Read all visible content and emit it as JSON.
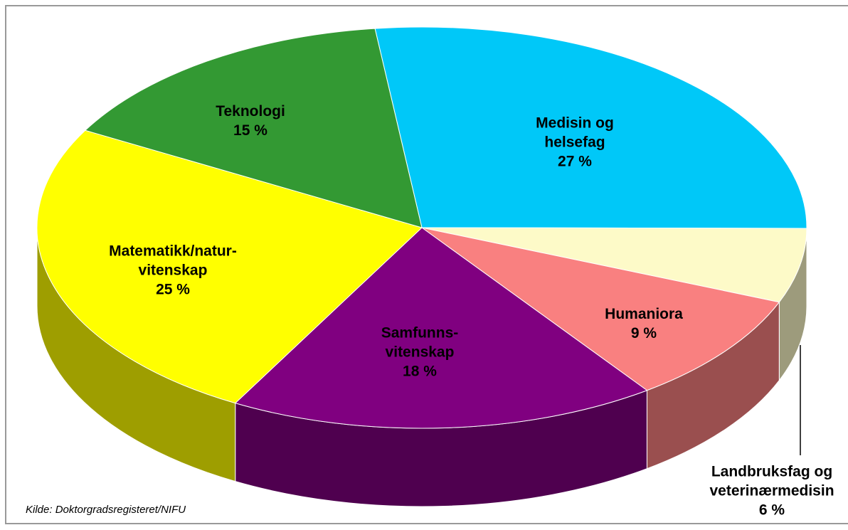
{
  "chart_data": {
    "type": "pie",
    "categories": [
      "Medisin og\nhelsefag",
      "Landbruksfag og\nveterinærmedisin",
      "Humaniora",
      "Samfunns-\nvitenskap",
      "Matematikk/natur-\nvitenskap",
      "Teknologi"
    ],
    "values": [
      27,
      6,
      9,
      18,
      25,
      15
    ],
    "value_labels": [
      "27 %",
      "6 %",
      "9 %",
      "18 %",
      "25 %",
      "15 %"
    ],
    "colors": [
      "#00c8f8",
      "#fdfac8",
      "#f98080",
      "#800080",
      "#ffff00",
      "#339933"
    ],
    "source": "Kilde:  Doktorgradsregisteret/NIFU"
  }
}
